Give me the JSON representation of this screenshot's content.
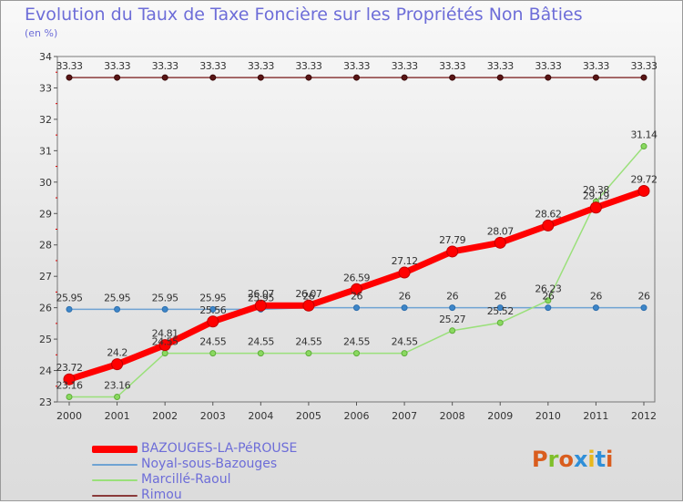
{
  "title": "Evolution du Taux de Taxe Foncière sur les Propriétés Non Bâties",
  "subtitle": "(en %)",
  "brand": {
    "text": "Proxiti",
    "colors": [
      "#d95d1e",
      "#7fbf2a",
      "#d95d1e",
      "#2f8fd8",
      "#e7b81e",
      "#2f8fd8",
      "#d95d1e"
    ]
  },
  "chart_data": {
    "type": "line",
    "x": [
      "2000",
      "2001",
      "2002",
      "2003",
      "2004",
      "2005",
      "2006",
      "2007",
      "2008",
      "2009",
      "2010",
      "2011",
      "2012"
    ],
    "ylim": [
      23,
      34
    ],
    "yticks": [
      "23",
      "24",
      "25",
      "26",
      "27",
      "28",
      "29",
      "30",
      "31",
      "32",
      "33",
      "34"
    ],
    "grid": false,
    "legend_position": "bottom-left",
    "series": [
      {
        "name": "BAZOUGES-LA-PéROUSE",
        "color": "#ff0000",
        "values": [
          23.72,
          24.2,
          24.81,
          25.56,
          26.07,
          26.07,
          26.59,
          27.12,
          27.79,
          28.07,
          28.62,
          29.19,
          29.72
        ],
        "labels": [
          "23.72",
          "24.2",
          "24.81",
          "25.56",
          "26.07",
          "26.07",
          "26.59",
          "27.12",
          "27.79",
          "28.07",
          "28.62",
          "29.19",
          "29.72"
        ]
      },
      {
        "name": "Noyal-sous-Bazouges",
        "color": "#6fa3d3",
        "values": [
          25.95,
          25.95,
          25.95,
          25.95,
          25.95,
          26,
          26,
          26,
          26,
          26,
          26,
          26,
          26
        ],
        "labels": [
          "25.95",
          "25.95",
          "25.95",
          "25.95",
          "25.95",
          "26",
          "26",
          "26",
          "26",
          "26",
          "26",
          "26",
          "26"
        ]
      },
      {
        "name": "Marcillé-Raoul",
        "color": "#9ae07a",
        "values": [
          23.16,
          23.16,
          24.55,
          24.55,
          24.55,
          24.55,
          24.55,
          24.55,
          25.27,
          25.52,
          26.23,
          29.38,
          31.14
        ],
        "labels": [
          "23.16",
          "23.16",
          "24.55",
          "24.55",
          "24.55",
          "24.55",
          "24.55",
          "24.55",
          "25.27",
          "25.52",
          "26.23",
          "29.38",
          "31.14"
        ]
      },
      {
        "name": "Rimou",
        "color": "#8a3a3a",
        "values": [
          33.33,
          33.33,
          33.33,
          33.33,
          33.33,
          33.33,
          33.33,
          33.33,
          33.33,
          33.33,
          33.33,
          33.33,
          33.33
        ],
        "labels": [
          "33.33",
          "33.33",
          "33.33",
          "33.33",
          "33.33",
          "33.33",
          "33.33",
          "33.33",
          "33.33",
          "33.33",
          "33.33",
          "33.33",
          "33.33"
        ]
      }
    ]
  }
}
